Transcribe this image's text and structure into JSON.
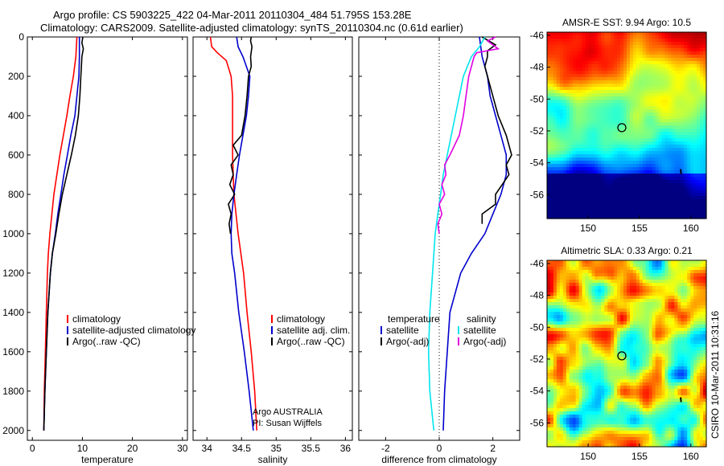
{
  "header": {
    "line1": "Argo profile: CS 5903225_422 04-Mar-2011 20110304_484 51.795S 153.28E",
    "line2": "Climatology: CARS2009. Satellite-adjusted climatology: synTS_20110304.nc (0.61d earlier)"
  },
  "side_label": "CSIRO 10-Mar-2011 10:31:16",
  "colors": {
    "climatology": "#ff0000",
    "satellite": "#0000cc",
    "argo": "#000000",
    "sat_salinity": "#00e5ee",
    "argo_salinity": "#e000e0"
  },
  "chart_data": [
    {
      "type": "line",
      "id": "temperature",
      "xlabel": "temperature",
      "ylabel": "",
      "xlim": [
        -1,
        31
      ],
      "ylim": [
        2050,
        0
      ],
      "xticks": [
        "0",
        "10",
        "20",
        "30"
      ],
      "yticks": [
        "0",
        "200",
        "400",
        "600",
        "800",
        "1000",
        "1200",
        "1400",
        "1600",
        "1800",
        "2000"
      ],
      "series": [
        {
          "name": "climatology",
          "color": "#ff0000",
          "points": [
            [
              8.9,
              0
            ],
            [
              8.7,
              100
            ],
            [
              8.2,
              200
            ],
            [
              7.5,
              300
            ],
            [
              6.9,
              400
            ],
            [
              6.2,
              500
            ],
            [
              5.5,
              600
            ],
            [
              4.9,
              700
            ],
            [
              4.3,
              800
            ],
            [
              3.9,
              900
            ],
            [
              3.5,
              1000
            ],
            [
              3.2,
              1100
            ],
            [
              3.0,
              1200
            ],
            [
              2.8,
              1400
            ],
            [
              2.6,
              1600
            ],
            [
              2.4,
              1800
            ],
            [
              2.3,
              2000
            ]
          ]
        },
        {
          "name": "satellite-adjusted climatology",
          "color": "#0000cc",
          "points": [
            [
              9.4,
              0
            ],
            [
              9.4,
              100
            ],
            [
              9.3,
              200
            ],
            [
              8.9,
              300
            ],
            [
              8.5,
              400
            ],
            [
              7.7,
              500
            ],
            [
              7.0,
              600
            ],
            [
              6.3,
              700
            ],
            [
              5.7,
              800
            ],
            [
              5.1,
              900
            ],
            [
              4.6,
              1000
            ],
            [
              4.0,
              1100
            ],
            [
              3.6,
              1200
            ],
            [
              3.1,
              1400
            ],
            [
              2.8,
              1600
            ],
            [
              2.5,
              1800
            ],
            [
              2.3,
              2000
            ]
          ]
        },
        {
          "name": "Argo(..raw -QC)",
          "color": "#000000",
          "points": [
            [
              10.1,
              0
            ],
            [
              9.9,
              30
            ],
            [
              10.2,
              60
            ],
            [
              9.9,
              100
            ],
            [
              9.8,
              150
            ],
            [
              9.7,
              200
            ],
            [
              9.6,
              250
            ],
            [
              9.5,
              300
            ],
            [
              9.2,
              400
            ],
            [
              8.6,
              500
            ],
            [
              7.8,
              600
            ],
            [
              6.9,
              700
            ],
            [
              6.0,
              800
            ],
            [
              5.3,
              900
            ],
            [
              4.7,
              1000
            ],
            [
              4.0,
              1100
            ],
            [
              3.6,
              1200
            ],
            [
              3.1,
              1400
            ],
            [
              2.8,
              1600
            ],
            [
              2.5,
              1800
            ],
            [
              2.3,
              2000
            ]
          ]
        }
      ],
      "legend": {
        "placement": "bottom-right",
        "entries": [
          "climatology",
          "satellite-adjusted climatology",
          "Argo(..raw -QC)"
        ]
      }
    },
    {
      "type": "line",
      "id": "salinity",
      "xlabel": "salinity",
      "ylabel": "",
      "xlim": [
        33.8,
        36.1
      ],
      "ylim": [
        2050,
        0
      ],
      "xticks": [
        "34",
        "34.5",
        "35",
        "35.5",
        "36"
      ],
      "series": [
        {
          "name": "climatology",
          "color": "#ff0000",
          "points": [
            [
              34.05,
              0
            ],
            [
              34.07,
              50
            ],
            [
              34.15,
              80
            ],
            [
              34.28,
              120
            ],
            [
              34.35,
              200
            ],
            [
              34.37,
              300
            ],
            [
              34.37,
              400
            ],
            [
              34.37,
              500
            ],
            [
              34.37,
              600
            ],
            [
              34.38,
              700
            ],
            [
              34.39,
              800
            ],
            [
              34.42,
              900
            ],
            [
              34.45,
              1000
            ],
            [
              34.49,
              1100
            ],
            [
              34.53,
              1200
            ],
            [
              34.58,
              1400
            ],
            [
              34.64,
              1600
            ],
            [
              34.69,
              1800
            ],
            [
              34.72,
              2000
            ]
          ]
        },
        {
          "name": "satellite adj. clim.",
          "color": "#0000cc",
          "points": [
            [
              34.43,
              0
            ],
            [
              34.45,
              50
            ],
            [
              34.52,
              100
            ],
            [
              34.62,
              200
            ],
            [
              34.6,
              300
            ],
            [
              34.57,
              400
            ],
            [
              34.52,
              500
            ],
            [
              34.47,
              600
            ],
            [
              34.43,
              700
            ],
            [
              34.39,
              800
            ],
            [
              34.36,
              900
            ],
            [
              34.35,
              1000
            ],
            [
              34.36,
              1100
            ],
            [
              34.4,
              1200
            ],
            [
              34.46,
              1400
            ],
            [
              34.54,
              1600
            ],
            [
              34.61,
              1800
            ],
            [
              34.67,
              2000
            ]
          ]
        },
        {
          "name": "Argo(..raw -QC)",
          "color": "#000000",
          "points": [
            [
              34.64,
              0
            ],
            [
              34.63,
              20
            ],
            [
              34.65,
              50
            ],
            [
              34.63,
              100
            ],
            [
              34.64,
              150
            ],
            [
              34.6,
              200
            ],
            [
              34.58,
              300
            ],
            [
              34.55,
              400
            ],
            [
              34.5,
              500
            ],
            [
              34.38,
              550
            ],
            [
              34.45,
              600
            ],
            [
              34.35,
              650
            ],
            [
              34.38,
              700
            ],
            [
              34.33,
              750
            ],
            [
              34.4,
              800
            ],
            [
              34.31,
              850
            ],
            [
              34.35,
              900
            ],
            [
              34.32,
              950
            ],
            [
              34.34,
              1000
            ]
          ]
        }
      ],
      "legend": {
        "placement": "bottom-right",
        "entries": [
          "climatology",
          "satellite adj. clim.",
          "Argo(..raw -QC)"
        ]
      },
      "annotation": {
        "line1": "Argo AUSTRALIA",
        "line2": "PI: Susan Wijffels"
      }
    },
    {
      "type": "line",
      "id": "difference",
      "xlabel": "difference from climatology",
      "ylabel": "",
      "xlim": [
        -3,
        3
      ],
      "ylim": [
        2050,
        0
      ],
      "xticks": [
        "-2",
        "0",
        "2"
      ],
      "zero_line": true,
      "series": [
        {
          "name": "temperature satellite",
          "color": "#0000cc",
          "points": [
            [
              1.5,
              0
            ],
            [
              1.6,
              100
            ],
            [
              1.8,
              200
            ],
            [
              1.9,
              300
            ],
            [
              2.1,
              400
            ],
            [
              2.3,
              500
            ],
            [
              2.5,
              600
            ],
            [
              2.5,
              700
            ],
            [
              2.3,
              800
            ],
            [
              2.0,
              900
            ],
            [
              1.7,
              1000
            ],
            [
              1.2,
              1100
            ],
            [
              0.8,
              1200
            ],
            [
              0.4,
              1400
            ],
            [
              0.3,
              1600
            ],
            [
              0.2,
              1800
            ],
            [
              0.15,
              2000
            ]
          ]
        },
        {
          "name": "temperature Argo(-adj)",
          "color": "#000000",
          "points": [
            [
              1.6,
              0
            ],
            [
              2.1,
              40
            ],
            [
              1.8,
              70
            ],
            [
              1.8,
              100
            ],
            [
              1.7,
              150
            ],
            [
              1.9,
              250
            ],
            [
              2.2,
              400
            ],
            [
              2.5,
              500
            ],
            [
              2.7,
              600
            ],
            [
              2.5,
              650
            ],
            [
              2.6,
              700
            ],
            [
              2.1,
              800
            ],
            [
              2.1,
              850
            ],
            [
              1.6,
              900
            ],
            [
              1.6,
              950
            ]
          ]
        },
        {
          "name": "salinity satellite",
          "color": "#00e5ee",
          "points": [
            [
              1.7,
              0
            ],
            [
              1.5,
              50
            ],
            [
              1.2,
              100
            ],
            [
              0.9,
              200
            ],
            [
              0.75,
              300
            ],
            [
              0.6,
              400
            ],
            [
              0.45,
              500
            ],
            [
              0.3,
              600
            ],
            [
              0.15,
              700
            ],
            [
              0.05,
              800
            ],
            [
              -0.05,
              900
            ],
            [
              -0.15,
              1000
            ],
            [
              -0.25,
              1200
            ],
            [
              -0.35,
              1400
            ],
            [
              -0.4,
              1600
            ],
            [
              -0.35,
              1800
            ],
            [
              -0.2,
              2000
            ]
          ]
        },
        {
          "name": "salinity Argo(-adj)",
          "color": "#e000e0",
          "points": [
            [
              2.1,
              0
            ],
            [
              1.8,
              20
            ],
            [
              2.2,
              60
            ],
            [
              1.4,
              80
            ],
            [
              1.3,
              100
            ],
            [
              1.1,
              200
            ],
            [
              1.0,
              300
            ],
            [
              0.9,
              400
            ],
            [
              0.75,
              500
            ],
            [
              0.4,
              600
            ],
            [
              0.2,
              650
            ],
            [
              0.25,
              700
            ],
            [
              0.1,
              750
            ],
            [
              0.2,
              800
            ],
            [
              0.0,
              850
            ],
            [
              0.1,
              900
            ],
            [
              -0.05,
              950
            ],
            [
              0.0,
              1000
            ]
          ]
        }
      ],
      "legend": {
        "placement": "bottom",
        "group_titles": [
          "temperature",
          "salinity"
        ],
        "entries": [
          "satellite",
          "Argo(-adj)",
          "satellite",
          "Argo(-adj)"
        ]
      }
    },
    {
      "type": "heatmap",
      "id": "sst-map",
      "title": "AMSR-E SST: 9.94 Argo: 10.5",
      "xlim": [
        146,
        161.5
      ],
      "ylim": [
        -57.5,
        -45.8
      ],
      "xticks": [
        "150",
        "155",
        "160"
      ],
      "yticks": [
        "-46",
        "-48",
        "-50",
        "-52",
        "-54",
        "-56"
      ],
      "marker": {
        "lon": 153.28,
        "lat": -51.795
      }
    },
    {
      "type": "heatmap",
      "id": "sla-map",
      "title": "Altimetric SLA: 0.33 Argo: 0.21",
      "xlim": [
        146,
        161.5
      ],
      "ylim": [
        -57.5,
        -45.8
      ],
      "xticks": [
        "150",
        "155",
        "160"
      ],
      "yticks": [
        "-46",
        "-48",
        "-50",
        "-52",
        "-54",
        "-56"
      ],
      "marker": {
        "lon": 153.28,
        "lat": -51.795
      }
    }
  ]
}
